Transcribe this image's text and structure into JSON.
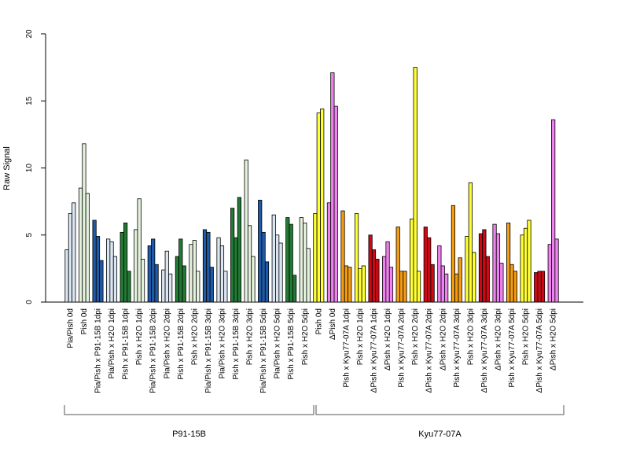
{
  "chart_data": {
    "type": "bar",
    "ylabel": "Raw Signal",
    "ylim": [
      0,
      20
    ],
    "yticks": [
      0,
      5,
      10,
      15,
      20
    ],
    "grid": false,
    "legend": "none",
    "colors": {
      "light_blue": "#dbe6f3",
      "light_green": "#e4f1dc",
      "dark_blue": "#1f5aa6",
      "dark_green": "#237a34",
      "yellow": "#ffff33",
      "violet": "#ee82ee",
      "orange": "#f39c12",
      "red": "#cc0a16"
    },
    "groups": [
      {
        "label": "P91-15B"
      },
      {
        "label": "Kyu77-07A"
      }
    ],
    "categories": [
      {
        "label": "Pia/Pish 0d",
        "color": "light_blue",
        "values": [
          3.9,
          6.6,
          7.4
        ]
      },
      {
        "label": "Pish 0d",
        "color": "light_green",
        "values": [
          8.5,
          11.8,
          8.1
        ]
      },
      {
        "label": "Pia/Pish x P91-15B 1dpi",
        "color": "dark_blue",
        "values": [
          6.1,
          4.9,
          3.1
        ]
      },
      {
        "label": "Pia/Pish x H2O 1dpi",
        "color": "light_blue",
        "values": [
          4.7,
          4.5,
          3.4
        ]
      },
      {
        "label": "Pish x P91-15B 1dpi",
        "color": "dark_green",
        "values": [
          5.2,
          5.9,
          2.3
        ]
      },
      {
        "label": "Pish x H2O 1dpi",
        "color": "light_green",
        "values": [
          5.4,
          7.7,
          3.2
        ]
      },
      {
        "label": "Pia/Pish x P91-15B 2dpi",
        "color": "dark_blue",
        "values": [
          4.2,
          4.7,
          2.8
        ]
      },
      {
        "label": "Pia/Pish x H2O 2dpi",
        "color": "light_blue",
        "values": [
          2.4,
          3.8,
          2.1
        ]
      },
      {
        "label": "Pish x P91-15B 2dpi",
        "color": "dark_green",
        "values": [
          3.4,
          4.7,
          2.7
        ]
      },
      {
        "label": "Pish x H2O 2dpi",
        "color": "light_green",
        "values": [
          4.3,
          4.6,
          2.3
        ]
      },
      {
        "label": "Pia/Pish x P91-15B 3dpi",
        "color": "dark_blue",
        "values": [
          5.4,
          5.2,
          2.6
        ]
      },
      {
        "label": "Pia/Pish x H2O 3dpi",
        "color": "light_blue",
        "values": [
          4.8,
          4.2,
          2.3
        ]
      },
      {
        "label": "Pish x P91-15B 3dpi",
        "color": "dark_green",
        "values": [
          7.0,
          4.8,
          7.8
        ]
      },
      {
        "label": "Pish x H2O 3dpi",
        "color": "light_green",
        "values": [
          10.6,
          5.7,
          3.4
        ]
      },
      {
        "label": "Pia/Pish x P91-15B 5dpi",
        "color": "dark_blue",
        "values": [
          7.6,
          5.2,
          3.0
        ]
      },
      {
        "label": "Pia/Pish x H2O 5dpi",
        "color": "light_blue",
        "values": [
          6.5,
          5.0,
          4.4
        ]
      },
      {
        "label": "Pish x P91-15B 5dpi",
        "color": "dark_green",
        "values": [
          6.3,
          5.8,
          2.0
        ]
      },
      {
        "label": "Pish x H2O 5dpi",
        "color": "light_green",
        "values": [
          6.3,
          5.9,
          4.0
        ]
      },
      {
        "label": "Pish 0d",
        "color": "yellow",
        "values": [
          6.6,
          14.1,
          14.4
        ]
      },
      {
        "label": "ΔPish 0d",
        "color": "violet",
        "values": [
          7.4,
          17.1,
          14.6
        ]
      },
      {
        "label": "Pish x Kyu77-07A 1dpi",
        "color": "orange",
        "values": [
          6.8,
          2.7,
          2.6
        ]
      },
      {
        "label": "Pish x H2O 1dpi",
        "color": "yellow",
        "values": [
          6.6,
          2.5,
          2.7
        ]
      },
      {
        "label": "ΔPish x Kyu77-07A 1dpi",
        "color": "red",
        "values": [
          5.0,
          3.9,
          3.2
        ]
      },
      {
        "label": "ΔPish x H2O 1dpi",
        "color": "violet",
        "values": [
          3.4,
          4.5,
          2.6
        ]
      },
      {
        "label": "Pish x Kyu77-07A 2dpi",
        "color": "orange",
        "values": [
          5.6,
          2.3,
          2.3
        ]
      },
      {
        "label": "Pish x H2O 2dpi",
        "color": "yellow",
        "values": [
          6.2,
          17.5,
          2.3
        ]
      },
      {
        "label": "ΔPish x Kyu77-07A 2dpi",
        "color": "red",
        "values": [
          5.6,
          4.8,
          2.8
        ]
      },
      {
        "label": "ΔPish x H2O 2dpi",
        "color": "violet",
        "values": [
          4.2,
          2.7,
          2.1
        ]
      },
      {
        "label": "Pish x Kyu77-07A 3dpi",
        "color": "orange",
        "values": [
          7.2,
          2.1,
          3.3
        ]
      },
      {
        "label": "Pish x H2O 3dpi",
        "color": "yellow",
        "values": [
          4.9,
          8.9,
          3.7
        ]
      },
      {
        "label": "ΔPish x Kyu77-07A 3dpi",
        "color": "red",
        "values": [
          5.1,
          5.4,
          3.4
        ]
      },
      {
        "label": "ΔPish x H2O 3dpi",
        "color": "violet",
        "values": [
          5.8,
          5.1,
          2.9
        ]
      },
      {
        "label": "Pish x Kyu77-07A 5dpi",
        "color": "orange",
        "values": [
          5.9,
          2.8,
          2.3
        ]
      },
      {
        "label": "Pish x H2O 5dpi",
        "color": "yellow",
        "values": [
          5.0,
          5.5,
          6.1
        ]
      },
      {
        "label": "ΔPish x Kyu77-07A 5dpi",
        "color": "red",
        "values": [
          2.2,
          2.3,
          2.3
        ]
      },
      {
        "label": "ΔPish x H2O 5dpi",
        "color": "violet",
        "values": [
          4.3,
          13.6,
          4.7
        ]
      }
    ]
  }
}
